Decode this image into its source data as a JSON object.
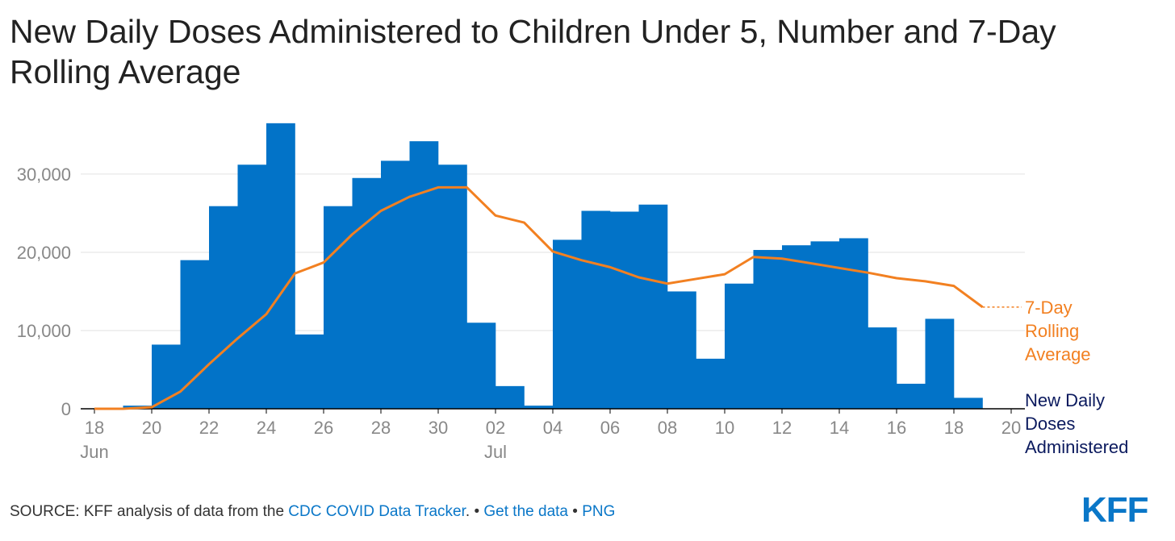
{
  "chart_data": {
    "type": "bar-line",
    "title": "New Daily Doses Administered to Children Under 5, Number and 7-Day Rolling Average",
    "x": [
      "06-18",
      "06-19",
      "06-20",
      "06-21",
      "06-22",
      "06-23",
      "06-24",
      "06-25",
      "06-26",
      "06-27",
      "06-28",
      "06-29",
      "06-30",
      "07-01",
      "07-02",
      "07-03",
      "07-04",
      "07-05",
      "07-06",
      "07-07",
      "07-08",
      "07-09",
      "07-10",
      "07-11",
      "07-12",
      "07-13",
      "07-14",
      "07-15",
      "07-16",
      "07-17",
      "07-18",
      "07-19"
    ],
    "series": [
      {
        "name": "New Daily Doses Administered",
        "type": "bar",
        "color": "#0273c8",
        "label_color": "#0b1a5e",
        "values": [
          100,
          400,
          8200,
          19000,
          25900,
          31200,
          36500,
          9500,
          25900,
          29500,
          31700,
          34200,
          31200,
          11000,
          2900,
          400,
          21600,
          25300,
          25200,
          26100,
          15000,
          6400,
          16000,
          20300,
          20900,
          21400,
          21800,
          10400,
          3200,
          11500,
          1400,
          null
        ]
      },
      {
        "name": "7-Day Rolling Average",
        "type": "line",
        "color": "#f28021",
        "label_color": "#f28021",
        "values": [
          0,
          0,
          200,
          2200,
          5700,
          9000,
          12100,
          17300,
          18700,
          22300,
          25300,
          27100,
          28300,
          28300,
          24700,
          23800,
          20100,
          19000,
          18100,
          16800,
          16000,
          16600,
          17200,
          19400,
          19200,
          18600,
          18000,
          17400,
          16700,
          16300,
          15700,
          13000
        ]
      }
    ],
    "xticks": [
      {
        "value": "06-18",
        "label": "18",
        "sublabel": "Jun"
      },
      {
        "value": "06-20",
        "label": "20"
      },
      {
        "value": "06-22",
        "label": "22"
      },
      {
        "value": "06-24",
        "label": "24"
      },
      {
        "value": "06-26",
        "label": "26"
      },
      {
        "value": "06-28",
        "label": "28"
      },
      {
        "value": "06-30",
        "label": "30"
      },
      {
        "value": "07-02",
        "label": "02",
        "sublabel": "Jul"
      },
      {
        "value": "07-04",
        "label": "04"
      },
      {
        "value": "07-06",
        "label": "06"
      },
      {
        "value": "07-08",
        "label": "08"
      },
      {
        "value": "07-10",
        "label": "10"
      },
      {
        "value": "07-12",
        "label": "12"
      },
      {
        "value": "07-14",
        "label": "14"
      },
      {
        "value": "07-16",
        "label": "16"
      },
      {
        "value": "07-18",
        "label": "18"
      },
      {
        "value": "07-20",
        "label": "20"
      }
    ],
    "ylim": [
      0,
      37000
    ],
    "yticks": [
      0,
      {
        "value": 10000,
        "label": "10,000"
      },
      {
        "value": 20000,
        "label": "20,000"
      },
      {
        "value": 30000,
        "label": "30,000"
      }
    ],
    "grid": true,
    "source": {
      "prefix": "SOURCE: KFF analysis of data from the ",
      "link": "CDC COVID Data Tracker",
      "sep1": ". • ",
      "data_link": "Get the data",
      "sep2": " • ",
      "png": "PNG"
    },
    "logo": "KFF"
  }
}
